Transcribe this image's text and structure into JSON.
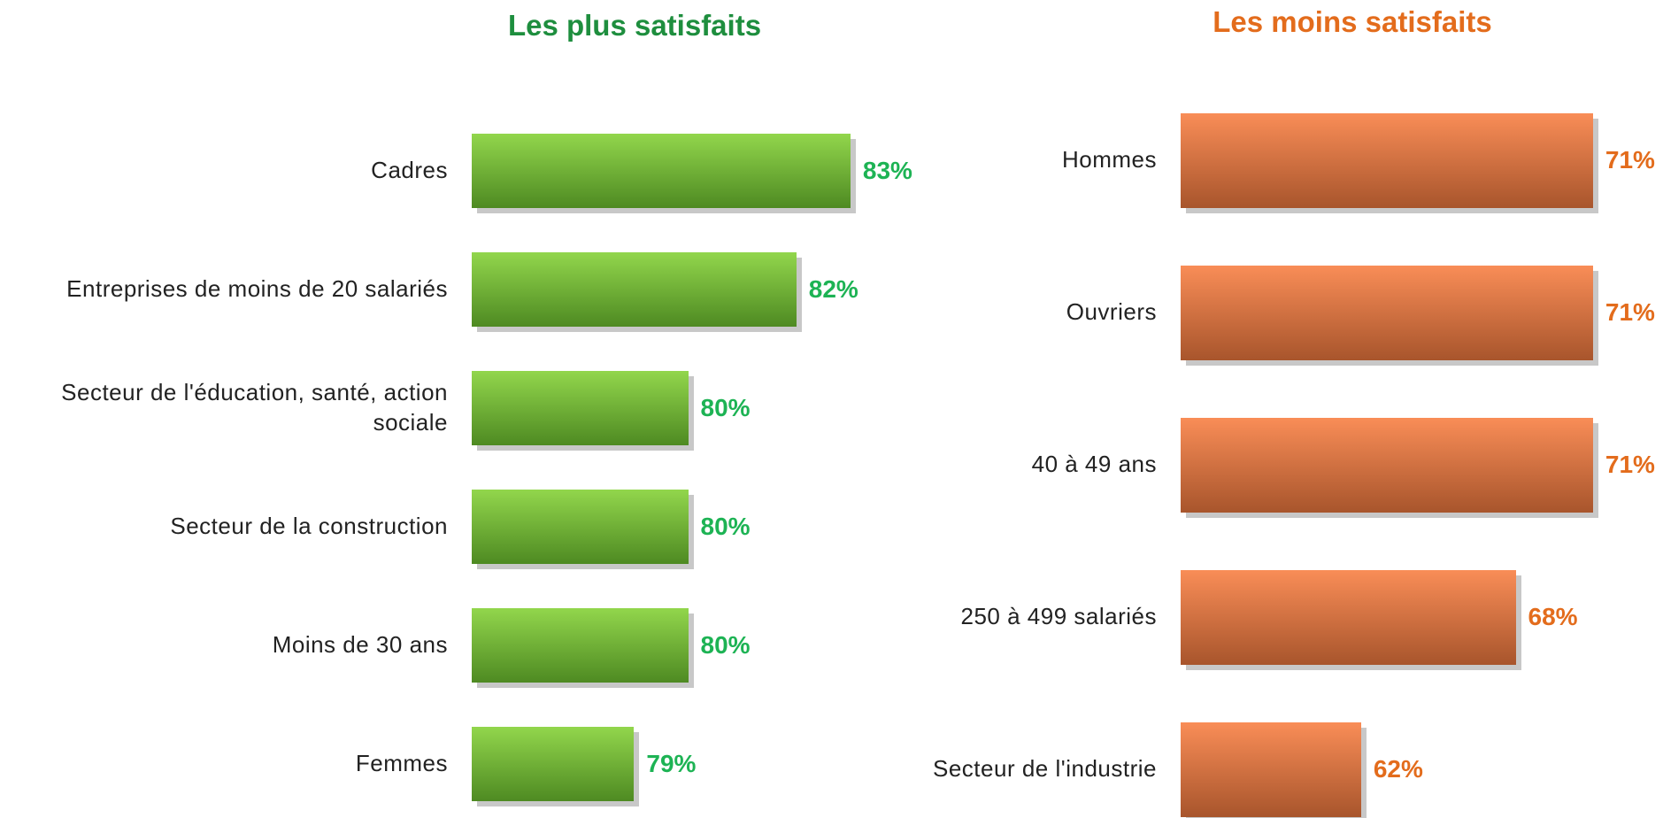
{
  "chart_data": [
    {
      "type": "bar",
      "orientation": "horizontal",
      "title": "Les plus satisfaits",
      "categories": [
        "Cadres",
        "Entreprises de moins de 20 salariés",
        "Secteur de l'éducation, santé, action sociale",
        "Secteur de la construction",
        "Moins de 30 ans",
        "Femmes"
      ],
      "values": [
        83,
        82,
        80,
        80,
        80,
        79
      ],
      "value_labels": [
        "83%",
        "82%",
        "80%",
        "80%",
        "80%",
        "79%"
      ],
      "color": [
        "#92d64c",
        "#4e8a22"
      ],
      "title_color": "#1e8e3e",
      "label_color": "#1db354",
      "xlim": [
        76,
        84
      ]
    },
    {
      "type": "bar",
      "orientation": "horizontal",
      "title": "Les moins satisfaits",
      "categories": [
        "Hommes",
        "Ouvriers",
        "40 à 49 ans",
        "250 à 499 salariés",
        "Secteur de l'industrie"
      ],
      "values": [
        71,
        71,
        71,
        68,
        62
      ],
      "value_labels": [
        "71%",
        "71%",
        "71%",
        "68%",
        "62%"
      ],
      "color": [
        "#f98d57",
        "#a8552c"
      ],
      "title_color": "#e36c1c",
      "label_color": "#e36c1c",
      "xlim": [
        55,
        72
      ]
    }
  ]
}
